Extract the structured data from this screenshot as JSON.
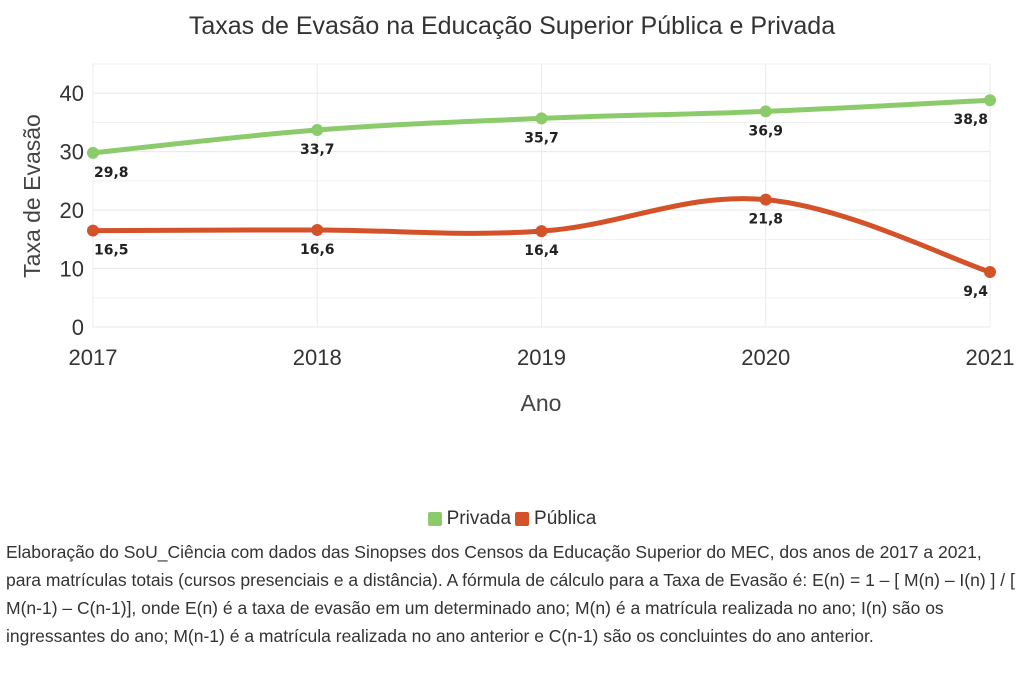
{
  "chart_data": {
    "type": "line",
    "title": "Taxas de Evasão na Educação Superior Pública e Privada",
    "xlabel": "Ano",
    "ylabel": "Taxa de Evasão",
    "x": [
      2017,
      2018,
      2019,
      2020,
      2021
    ],
    "x_tick_labels": [
      "2017",
      "2018",
      "2019",
      "2020",
      "2021"
    ],
    "y_ticks": [
      0,
      10,
      20,
      30,
      40
    ],
    "y_tick_labels": [
      "0",
      "10",
      "20",
      "30",
      "40"
    ],
    "ylim": [
      0,
      45
    ],
    "grid": true,
    "legend_position": "bottom",
    "series": [
      {
        "name": "Privada",
        "color": "#8CCB6B",
        "values": [
          29.8,
          33.7,
          35.7,
          36.9,
          38.8
        ],
        "labels": [
          "29,8",
          "33,7",
          "35,7",
          "36,9",
          "38,8"
        ]
      },
      {
        "name": "Pública",
        "color": "#D45229",
        "values": [
          16.5,
          16.6,
          16.4,
          21.8,
          9.4
        ],
        "labels": [
          "16,5",
          "16,6",
          "16,4",
          "21,8",
          "9,4"
        ]
      }
    ]
  },
  "note": "Elaboração do SoU_Ciência com dados das Sinopses dos Censos da Educação Superior do MEC, dos anos de 2017 a 2021, para matrículas totais (cursos presenciais e a distância). A fórmula de cálculo para a Taxa de Evasão é: E(n) = 1 – [ M(n) – I(n) ] / [ M(n-1) – C(n-1)], onde E(n) é a taxa de evasão em um determinado ano; M(n) é a matrícula realizada no ano; I(n) são os ingressantes do ano; M(n-1) é a matrícula realizada no ano anterior e C(n-1) são os concluintes do ano anterior."
}
